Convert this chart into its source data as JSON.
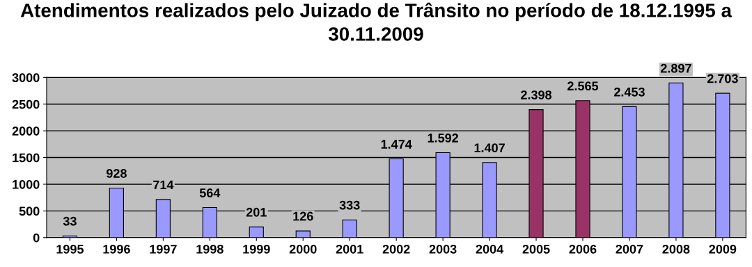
{
  "chart_data": {
    "type": "bar",
    "title": "Atendimentos realizados pelo Juizado de Trânsito no período de 18.12.1995 a 30.11.2009",
    "categories": [
      "1995",
      "1996",
      "1997",
      "1998",
      "1999",
      "2000",
      "2001",
      "2002",
      "2003",
      "2004",
      "2005",
      "2006",
      "2007",
      "2008",
      "2009"
    ],
    "values": [
      33,
      928,
      714,
      564,
      201,
      126,
      333,
      1474,
      1592,
      1407,
      2398,
      2565,
      2453,
      2897,
      2703
    ],
    "value_labels": [
      "33",
      "928",
      "714",
      "564",
      "201",
      "126",
      "333",
      "1.474",
      "1.592",
      "1.407",
      "2.398",
      "2.565",
      "2.453",
      "2.897",
      "2.703"
    ],
    "colors": [
      "#9999ff",
      "#9999ff",
      "#9999ff",
      "#9999ff",
      "#9999ff",
      "#9999ff",
      "#9999ff",
      "#9999ff",
      "#9999ff",
      "#9999ff",
      "#993366",
      "#993366",
      "#9999ff",
      "#9999ff",
      "#9999ff"
    ],
    "ylim": [
      0,
      3000
    ],
    "yticks": [
      0,
      500,
      1000,
      1500,
      2000,
      2500,
      3000
    ],
    "grid": "y",
    "legend": false
  }
}
